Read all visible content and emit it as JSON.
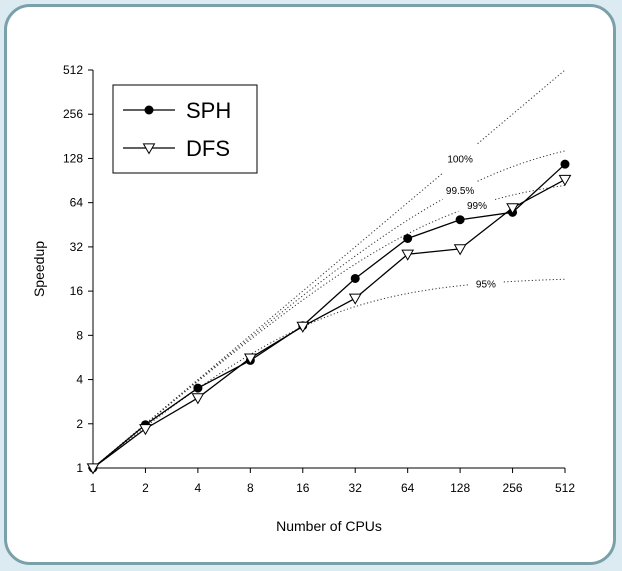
{
  "chart_data": {
    "type": "line",
    "xscale": "log2",
    "yscale": "log2",
    "x": [
      1,
      2,
      4,
      8,
      16,
      32,
      64,
      128,
      256,
      512
    ],
    "x_ticks": [
      "1",
      "2",
      "4",
      "8",
      "16",
      "32",
      "64",
      "128",
      "256",
      "512"
    ],
    "y_ticks": [
      "1",
      "2",
      "4",
      "8",
      "16",
      "32",
      "64",
      "128",
      "256",
      "512"
    ],
    "xlim": [
      1,
      512
    ],
    "ylim": [
      1,
      512
    ],
    "xlabel": "Number of CPUs",
    "ylabel": "Speedup",
    "grid": false,
    "legend_position": "top-left",
    "series": [
      {
        "name": "SPH",
        "marker": "filled-circle",
        "values": [
          1,
          1.97,
          3.5,
          5.4,
          9.3,
          19.5,
          36.5,
          49,
          55,
          117
        ]
      },
      {
        "name": "DFS",
        "marker": "open-triangle-down",
        "values": [
          1,
          1.85,
          3.0,
          5.6,
          9.2,
          14.3,
          28.5,
          31,
          59,
          92
        ]
      }
    ],
    "reference_curves": [
      {
        "label": "100%",
        "parallel_fraction": 1.0
      },
      {
        "label": "99.5%",
        "parallel_fraction": 0.995
      },
      {
        "label": "99%",
        "parallel_fraction": 0.99
      },
      {
        "label": "95%",
        "parallel_fraction": 0.95
      }
    ]
  }
}
